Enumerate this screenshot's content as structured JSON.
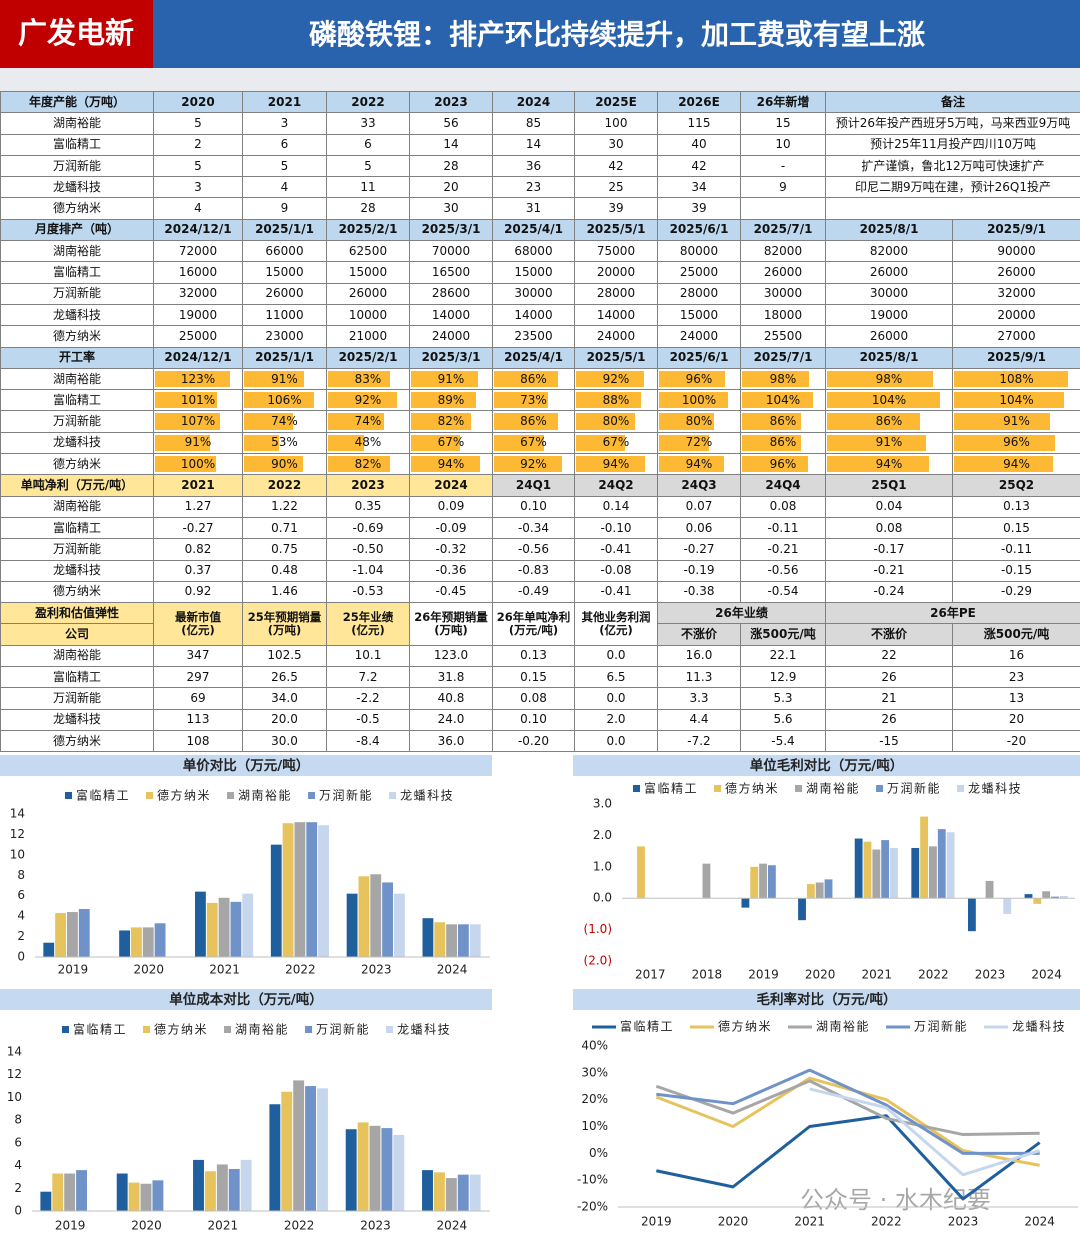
{
  "header": {
    "brand": "广发电新",
    "title": "磷酸铁锂：排产环比持续提升，加工费或有望上涨"
  },
  "tables": [
    {
      "header": [
        "年度产能（万吨）",
        "2020",
        "2021",
        "2022",
        "2023",
        "2024",
        "2025E",
        "2026E",
        "26年新增",
        "备注"
      ],
      "rows": [
        [
          "湖南裕能",
          "5",
          "3",
          "33",
          "56",
          "85",
          "100",
          "115",
          "15",
          "预计26年投产西班牙5万吨，马来西亚9万吨"
        ],
        [
          "富临精工",
          "2",
          "6",
          "6",
          "14",
          "14",
          "30",
          "40",
          "10",
          "预计25年11月投产四川10万吨"
        ],
        [
          "万润新能",
          "5",
          "5",
          "5",
          "28",
          "36",
          "42",
          "42",
          "-",
          "扩产谨慎，鲁北12万吨可快速扩产"
        ],
        [
          "龙蟠科技",
          "3",
          "4",
          "11",
          "20",
          "23",
          "25",
          "34",
          "9",
          "印尼二期9万吨在建，预计26Q1投产"
        ],
        [
          "德方纳米",
          "4",
          "9",
          "28",
          "30",
          "31",
          "39",
          "39",
          null,
          null
        ]
      ]
    },
    {
      "header": [
        "月度排产（吨）",
        "2024/12/1",
        "2025/1/1",
        "2025/2/1",
        "2025/3/1",
        "2025/4/1",
        "2025/5/1",
        "2025/6/1",
        "2025/7/1",
        "2025/8/1",
        "2025/9/1"
      ],
      "rows": [
        [
          "湖南裕能",
          "72000",
          "66000",
          "62500",
          "70000",
          "68000",
          "75000",
          "80000",
          "82000",
          "82000",
          "90000"
        ],
        [
          "富临精工",
          "16000",
          "15000",
          "15000",
          "16500",
          "15000",
          "20000",
          "25000",
          "26000",
          "26000",
          "26000"
        ],
        [
          "万润新能",
          "32000",
          "26000",
          "26000",
          "28600",
          "30000",
          "28000",
          "28000",
          "30000",
          "30000",
          "32000"
        ],
        [
          "龙蟠科技",
          "19000",
          "11000",
          "10000",
          "14000",
          "14000",
          "14000",
          "15000",
          "18000",
          "19000",
          "20000"
        ],
        [
          "德方纳米",
          "25000",
          "23000",
          "21000",
          "24000",
          "23500",
          "24000",
          "24000",
          "25500",
          "26000",
          "27000"
        ]
      ]
    },
    {
      "header": [
        "开工率",
        "2024/12/1",
        "2025/1/1",
        "2025/2/1",
        "2025/3/1",
        "2025/4/1",
        "2025/5/1",
        "2025/6/1",
        "2025/7/1",
        "2025/8/1",
        "2025/9/1"
      ],
      "bar_color": "#fdb933",
      "rows": [
        {
          "name": "湖南裕能",
          "values": [
            123,
            91,
            83,
            91,
            86,
            92,
            96,
            98,
            98,
            108
          ],
          "value_labels": [
            "123%",
            "91%",
            "83%",
            "91%",
            "86%",
            "92%",
            "96%",
            "98%",
            "98%",
            "108%"
          ]
        },
        {
          "name": "富临精工",
          "values": [
            101,
            106,
            92,
            89,
            73,
            88,
            100,
            104,
            104,
            104
          ],
          "value_labels": [
            "101%",
            "106%",
            "92%",
            "89%",
            "73%",
            "88%",
            "100%",
            "104%",
            "104%",
            "104%"
          ]
        },
        {
          "name": "万润新能",
          "values": [
            107,
            74,
            74,
            82,
            86,
            80,
            80,
            86,
            86,
            91
          ],
          "value_labels": [
            "107%",
            "74%",
            "74%",
            "82%",
            "86%",
            "80%",
            "80%",
            "86%",
            "86%",
            "91%"
          ]
        },
        {
          "name": "龙蟠科技",
          "values": [
            91,
            53,
            48,
            67,
            67,
            67,
            72,
            86,
            91,
            96
          ],
          "value_labels": [
            "91%",
            "53%",
            "48%",
            "67%",
            "67%",
            "67%",
            "72%",
            "86%",
            "91%",
            "96%"
          ]
        },
        {
          "name": "德方纳米",
          "values": [
            100,
            90,
            82,
            94,
            92,
            94,
            94,
            96,
            94,
            94
          ],
          "value_labels": [
            "100%",
            "90%",
            "82%",
            "94%",
            "92%",
            "94%",
            "94%",
            "96%",
            "94%",
            "94%"
          ]
        }
      ]
    },
    {
      "header": [
        "单吨净利（万元/吨）",
        "2021",
        "2022",
        "2023",
        "2024",
        "24Q1",
        "24Q2",
        "24Q3",
        "24Q4",
        "25Q1",
        "25Q2"
      ],
      "rows": [
        [
          "湖南裕能",
          "1.27",
          "1.22",
          "0.35",
          "0.09",
          "0.10",
          "0.14",
          "0.07",
          "0.08",
          "0.04",
          "0.13"
        ],
        [
          "富临精工",
          "-0.27",
          "0.71",
          "-0.69",
          "-0.09",
          "-0.34",
          "-0.10",
          "0.06",
          "-0.11",
          "0.08",
          "0.15"
        ],
        [
          "万润新能",
          "0.82",
          "0.75",
          "-0.50",
          "-0.32",
          "-0.56",
          "-0.41",
          "-0.27",
          "-0.21",
          "-0.17",
          "-0.11"
        ],
        [
          "龙蟠科技",
          "0.37",
          "0.48",
          "-1.04",
          "-0.36",
          "-0.83",
          "-0.08",
          "-0.19",
          "-0.56",
          "-0.21",
          "-0.15"
        ],
        [
          "德方纳米",
          "0.92",
          "1.46",
          "-0.53",
          "-0.45",
          "-0.49",
          "-0.41",
          "-0.38",
          "-0.54",
          "-0.24",
          "-0.29"
        ]
      ]
    },
    {
      "header_top": [
        "盈利和估值弹性",
        "最新市值\n(亿元)",
        "25年预期销量\n(万吨)",
        "25年业绩\n(亿元)",
        "26年预期销量\n(万吨)",
        "26年单吨净利\n(万元/吨)",
        "其他业务利润\n(亿元)",
        "26年业绩",
        "26年PE"
      ],
      "header_bottom": [
        "公司",
        "不涨价",
        "涨500元/吨",
        "不涨价",
        "涨500元/吨"
      ],
      "rows": [
        [
          "湖南裕能",
          "347",
          "102.5",
          "10.1",
          "123.0",
          "0.13",
          "0.0",
          "16.0",
          "22.1",
          "22",
          "16"
        ],
        [
          "富临精工",
          "297",
          "26.5",
          "7.2",
          "31.8",
          "0.15",
          "6.5",
          "11.3",
          "12.9",
          "26",
          "23"
        ],
        [
          "万润新能",
          "69",
          "34.0",
          "-2.2",
          "40.8",
          "0.08",
          "0.0",
          "3.3",
          "5.3",
          "21",
          "13"
        ],
        [
          "龙蟠科技",
          "113",
          "20.0",
          "-0.5",
          "24.0",
          "0.10",
          "2.0",
          "4.4",
          "5.6",
          "26",
          "20"
        ],
        [
          "德方纳米",
          "108",
          "30.0",
          "-8.4",
          "36.0",
          "-0.20",
          "0.0",
          "-7.2",
          "-5.4",
          "-15",
          "-20"
        ]
      ]
    }
  ],
  "chart_data": [
    {
      "type": "bar",
      "title": "单价对比（万元/吨）",
      "categories": [
        "2019",
        "2020",
        "2021",
        "2022",
        "2023",
        "2024"
      ],
      "ylim": [
        0,
        14
      ],
      "yticks": [
        0,
        2,
        4,
        6,
        8,
        10,
        12,
        14
      ],
      "grid": false,
      "legend": "top",
      "series": [
        {
          "name": "富临精工",
          "color": "#1f5f9e",
          "values": [
            1.4,
            2.6,
            6.4,
            11.0,
            6.2,
            3.8
          ]
        },
        {
          "name": "德方纳米",
          "color": "#e6c35c",
          "values": [
            4.3,
            2.9,
            5.3,
            13.1,
            7.9,
            3.4
          ]
        },
        {
          "name": "湖南裕能",
          "color": "#a6a6a6",
          "values": [
            4.4,
            2.9,
            5.8,
            13.2,
            8.1,
            3.2
          ]
        },
        {
          "name": "万润新能",
          "color": "#6f93c8",
          "values": [
            4.7,
            3.3,
            5.4,
            13.2,
            7.3,
            3.2
          ]
        },
        {
          "name": "龙蟠科技",
          "color": "#c6d6ec",
          "values": [
            null,
            null,
            6.2,
            12.9,
            6.2,
            3.2
          ]
        }
      ]
    },
    {
      "type": "bar",
      "title": "单位毛利对比（万元/吨）",
      "categories": [
        "2017",
        "2018",
        "2019",
        "2020",
        "2021",
        "2022",
        "2023",
        "2024"
      ],
      "ylim": [
        -2,
        3
      ],
      "yticks": [
        {
          "value": 3,
          "label": "3.0"
        },
        {
          "value": 2,
          "label": "2.0"
        },
        {
          "value": 1,
          "label": "1.0"
        },
        {
          "value": 0,
          "label": "0.0"
        },
        {
          "value": -1,
          "label": "(1.0)"
        },
        {
          "value": -2,
          "label": "(2.0)"
        }
      ],
      "negative_tick_color": "#c00000",
      "grid": false,
      "legend": "top",
      "series": [
        {
          "name": "富临精工",
          "color": "#1f5f9e",
          "values": [
            null,
            null,
            -0.3,
            -0.7,
            1.9,
            1.6,
            -1.05,
            0.13
          ]
        },
        {
          "name": "德方纳米",
          "color": "#e6c35c",
          "values": [
            1.65,
            null,
            1.0,
            0.45,
            1.8,
            2.6,
            null,
            -0.18
          ]
        },
        {
          "name": "湖南裕能",
          "color": "#a6a6a6",
          "values": [
            null,
            1.1,
            1.1,
            0.5,
            1.55,
            1.65,
            0.55,
            0.22
          ]
        },
        {
          "name": "万润新能",
          "color": "#6f93c8",
          "values": [
            null,
            null,
            1.05,
            0.6,
            1.85,
            2.2,
            null,
            0.05
          ]
        },
        {
          "name": "龙蟠科技",
          "color": "#c6d6ec",
          "values": [
            null,
            null,
            null,
            null,
            1.6,
            2.1,
            -0.5,
            0.07
          ]
        }
      ]
    },
    {
      "type": "bar",
      "title": "单位成本对比（万元/吨）",
      "categories": [
        "2019",
        "2020",
        "2021",
        "2022",
        "2023",
        "2024"
      ],
      "ylim": [
        0,
        14
      ],
      "yticks": [
        0,
        2,
        4,
        6,
        8,
        10,
        12,
        14
      ],
      "grid": false,
      "legend": "top",
      "series": [
        {
          "name": "富临精工",
          "color": "#1f5f9e",
          "values": [
            1.7,
            3.3,
            4.5,
            9.4,
            7.2,
            3.6
          ]
        },
        {
          "name": "德方纳米",
          "color": "#e6c35c",
          "values": [
            3.3,
            2.5,
            3.5,
            10.5,
            7.8,
            3.4
          ]
        },
        {
          "name": "湖南裕能",
          "color": "#a6a6a6",
          "values": [
            3.3,
            2.4,
            4.1,
            11.5,
            7.5,
            2.9
          ]
        },
        {
          "name": "万润新能",
          "color": "#6f93c8",
          "values": [
            3.6,
            2.7,
            3.7,
            11.0,
            7.3,
            3.2
          ]
        },
        {
          "name": "龙蟠科技",
          "color": "#c6d6ec",
          "values": [
            null,
            null,
            4.5,
            10.8,
            6.7,
            3.2
          ]
        }
      ]
    },
    {
      "type": "line",
      "title": "毛利率对比（万元/吨）",
      "categories": [
        "2019",
        "2020",
        "2021",
        "2022",
        "2023",
        "2024"
      ],
      "ylim": [
        -20,
        40
      ],
      "yticks": [
        {
          "value": 40,
          "label": "40%"
        },
        {
          "value": 30,
          "label": "30%"
        },
        {
          "value": 20,
          "label": "20%"
        },
        {
          "value": 10,
          "label": "10%"
        },
        {
          "value": 0,
          "label": "0%"
        },
        {
          "value": -10,
          "label": "-10%"
        },
        {
          "value": -20,
          "label": "-20%"
        }
      ],
      "grid": false,
      "legend": "top",
      "series": [
        {
          "name": "富临精工",
          "color": "#1f5f9e",
          "values": [
            -6.5,
            -12.5,
            10,
            14,
            -17,
            4
          ]
        },
        {
          "name": "德方纳米",
          "color": "#e6c35c",
          "values": [
            21,
            10,
            28,
            20,
            1,
            -4.5
          ]
        },
        {
          "name": "湖南裕能",
          "color": "#a6a6a6",
          "values": [
            25,
            15,
            27,
            13,
            7,
            7.5
          ]
        },
        {
          "name": "万润新能",
          "color": "#6f93c8",
          "values": [
            22,
            18.5,
            31,
            18,
            0,
            0
          ]
        },
        {
          "name": "龙蟠科技",
          "color": "#c6d6ec",
          "values": [
            null,
            null,
            24,
            17,
            -8,
            1
          ]
        }
      ]
    }
  ],
  "watermark": "公众号 · 水木纪要"
}
